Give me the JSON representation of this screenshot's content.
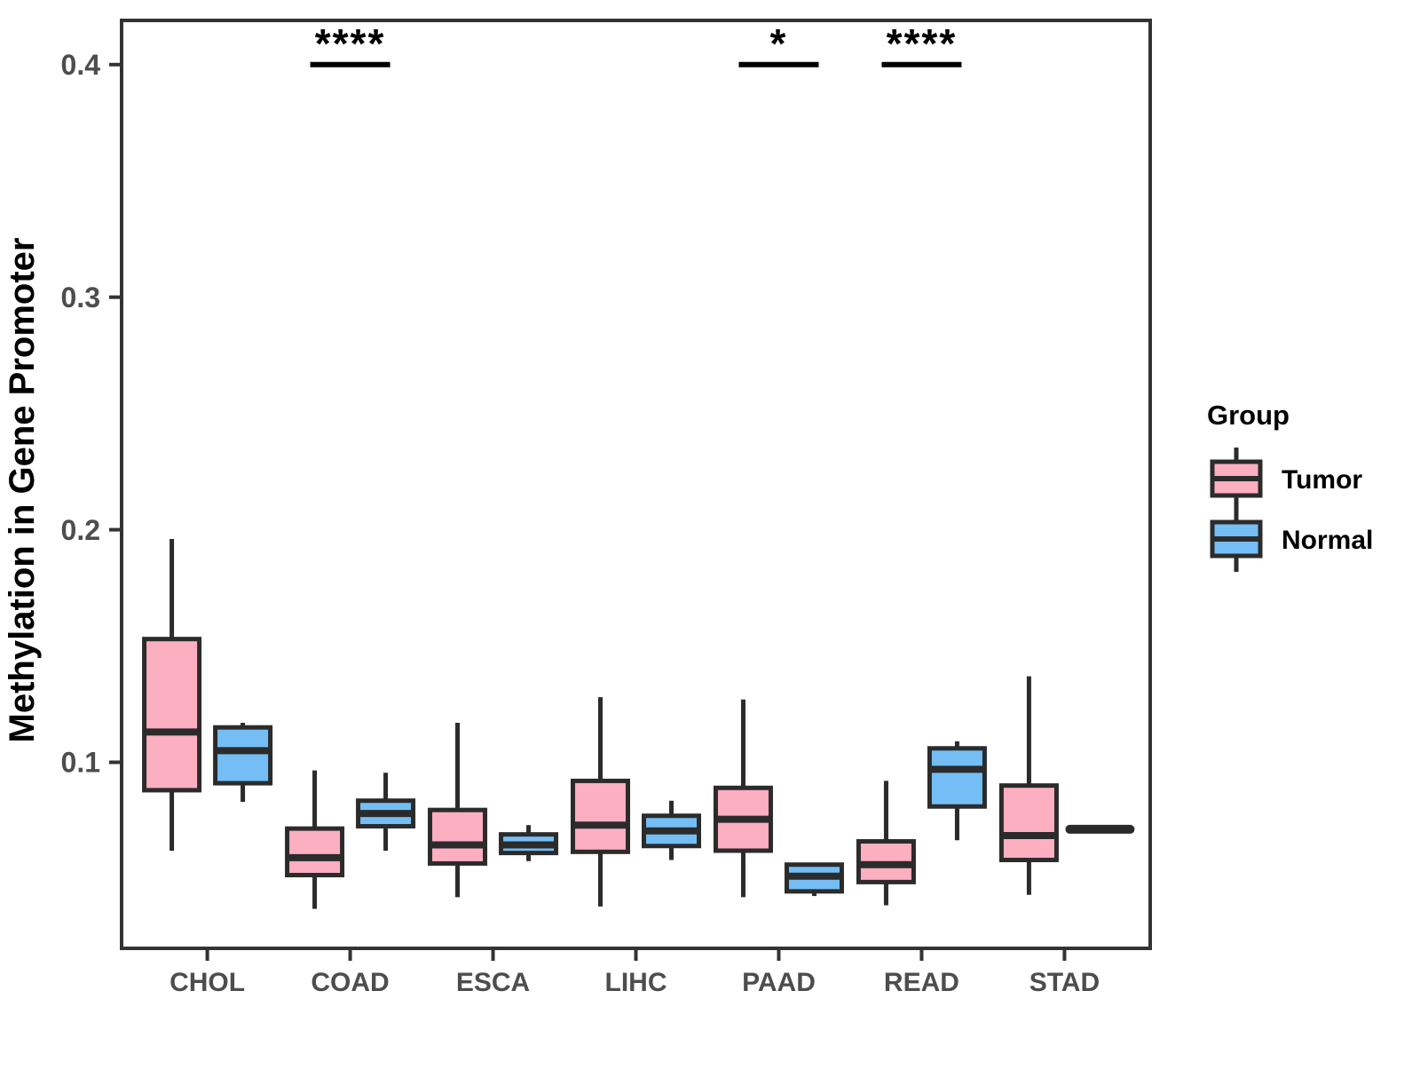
{
  "chart_data": {
    "type": "boxplot",
    "title": "",
    "xlabel": "",
    "ylabel": "Methylation in Gene Promoter",
    "categories": [
      "CHOL",
      "COAD",
      "ESCA",
      "LIHC",
      "PAAD",
      "READ",
      "STAD"
    ],
    "y_ticks": [
      0.1,
      0.2,
      0.3,
      0.4
    ],
    "y_tick_labels": [
      "0.1",
      "0.2",
      "0.3",
      "0.4"
    ],
    "ylim": [
      0.02,
      0.419
    ],
    "grid": false,
    "legend_position": "right",
    "series": [
      {
        "name": "Tumor",
        "color": "#FBAFC1",
        "boxes": [
          {
            "category": "CHOL",
            "whisker_low": 0.062,
            "q1": 0.088,
            "median": 0.113,
            "q3": 0.153,
            "whisker_high": 0.196
          },
          {
            "category": "COAD",
            "whisker_low": 0.037,
            "q1": 0.0515,
            "median": 0.059,
            "q3": 0.0715,
            "whisker_high": 0.0965
          },
          {
            "category": "ESCA",
            "whisker_low": 0.042,
            "q1": 0.0565,
            "median": 0.0645,
            "q3": 0.0795,
            "whisker_high": 0.117
          },
          {
            "category": "LIHC",
            "whisker_low": 0.038,
            "q1": 0.0615,
            "median": 0.073,
            "q3": 0.092,
            "whisker_high": 0.128
          },
          {
            "category": "PAAD",
            "whisker_low": 0.042,
            "q1": 0.062,
            "median": 0.0755,
            "q3": 0.089,
            "whisker_high": 0.127
          },
          {
            "category": "READ",
            "whisker_low": 0.0385,
            "q1": 0.0485,
            "median": 0.056,
            "q3": 0.066,
            "whisker_high": 0.092
          },
          {
            "category": "STAD",
            "whisker_low": 0.043,
            "q1": 0.058,
            "median": 0.0685,
            "q3": 0.09,
            "whisker_high": 0.137
          }
        ]
      },
      {
        "name": "Normal",
        "color": "#74BEF5",
        "boxes": [
          {
            "category": "CHOL",
            "whisker_low": 0.083,
            "q1": 0.091,
            "median": 0.105,
            "q3": 0.115,
            "whisker_high": 0.117
          },
          {
            "category": "COAD",
            "whisker_low": 0.062,
            "q1": 0.0725,
            "median": 0.078,
            "q3": 0.0835,
            "whisker_high": 0.0955
          },
          {
            "category": "ESCA",
            "whisker_low": 0.0575,
            "q1": 0.061,
            "median": 0.0645,
            "q3": 0.069,
            "whisker_high": 0.073
          },
          {
            "category": "LIHC",
            "whisker_low": 0.058,
            "q1": 0.064,
            "median": 0.0705,
            "q3": 0.077,
            "whisker_high": 0.0835
          },
          {
            "category": "PAAD",
            "whisker_low": 0.0425,
            "q1": 0.0445,
            "median": 0.051,
            "q3": 0.056,
            "whisker_high": 0.0565
          },
          {
            "category": "READ",
            "whisker_low": 0.0665,
            "q1": 0.081,
            "median": 0.097,
            "q3": 0.106,
            "whisker_high": 0.109
          },
          {
            "category": "STAD",
            "whisker_low": 0.0712,
            "q1": 0.0712,
            "median": 0.0712,
            "q3": 0.0712,
            "whisker_high": 0.0712
          }
        ]
      }
    ],
    "annotations": [
      {
        "category": "COAD",
        "label": "****",
        "y": 0.4
      },
      {
        "category": "PAAD",
        "label": "*",
        "y": 0.4
      },
      {
        "category": "READ",
        "label": "****",
        "y": 0.4
      }
    ],
    "legend": {
      "title": "Group",
      "items": [
        {
          "label": "Tumor",
          "color": "#FBAFC1"
        },
        {
          "label": "Normal",
          "color": "#74BEF5"
        }
      ]
    },
    "style": {
      "box_border_color": "#2B2B2B",
      "axis_color": "#333333",
      "tick_label_color": "#4D4D4D"
    }
  }
}
